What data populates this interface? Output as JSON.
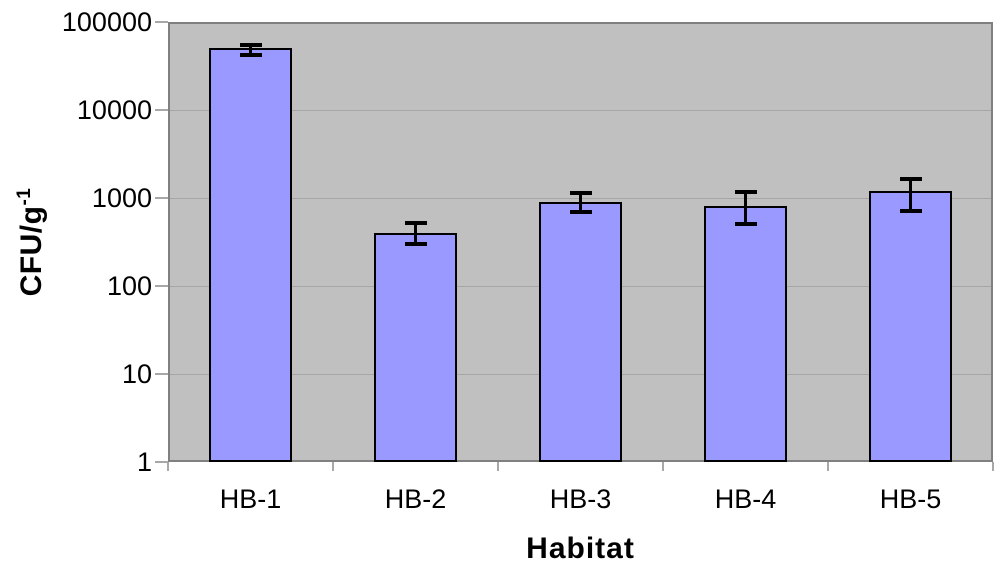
{
  "chart_data": {
    "type": "bar",
    "xlabel": "Habitat",
    "ylabel": "CFU/g",
    "ylabel_sup": "-1",
    "categories": [
      "HB-1",
      "HB-2",
      "HB-3",
      "HB-4",
      "HB-5"
    ],
    "values": [
      50000,
      400,
      900,
      820,
      1200
    ],
    "error_low": [
      42000,
      300,
      700,
      510,
      710
    ],
    "error_high": [
      55000,
      520,
      1140,
      1170,
      1650
    ],
    "y_scale": "log",
    "ylim": [
      1,
      100000
    ],
    "y_ticks": [
      1,
      10,
      100,
      1000,
      10000,
      100000
    ],
    "y_tick_labels": [
      "1",
      "10",
      "100",
      "1000",
      "10000",
      "100000"
    ],
    "grid": "horizontal-only",
    "legend": "none",
    "colors": {
      "bar_fill": "#9999FF",
      "bar_border": "#000000",
      "error_bar": "#000000",
      "plot_background": "#C0C0C0",
      "gridline": "#A6A6A6",
      "plot_border": "#808080",
      "tick_mark": "#A8A8A8",
      "text": "#000000",
      "page_background": "#FFFFFF"
    }
  }
}
